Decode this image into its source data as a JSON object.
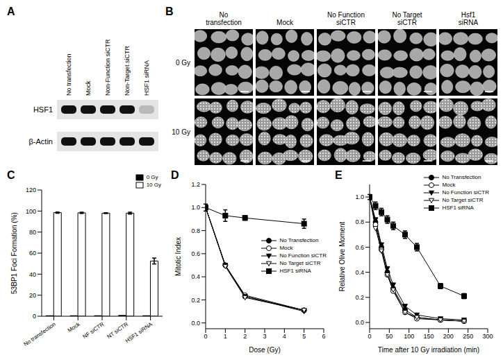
{
  "panels": {
    "A": {
      "panel": "A",
      "type": "blot",
      "lanes": [
        "No transfection",
        "Mock",
        "Non-Function siCTR",
        "Non-Target siCTR",
        "HSF1 siRNA"
      ],
      "rows": [
        {
          "name": "HSF1",
          "intensity": [
            1,
            1,
            1,
            1,
            0.2
          ]
        },
        {
          "name": "β-Actin",
          "intensity": [
            1,
            1,
            1,
            1,
            1
          ]
        }
      ]
    },
    "B": {
      "panel": "B",
      "type": "micrographs",
      "columns": [
        "No transfection",
        "Mock",
        "No Function siCTR",
        "No Target siCTR",
        "Hsf1 siRNA"
      ],
      "rows": [
        "0 Gy",
        "10 Gy"
      ]
    }
  },
  "chart_data": [
    {
      "panel": "C",
      "type": "bar",
      "categories": [
        "No transfection",
        "Mock",
        "NF siCTR",
        "NT siCTR",
        "HSF1 siRNA"
      ],
      "series": [
        {
          "name": "0 Gy",
          "color": "#000000",
          "values": [
            0.5,
            0.5,
            0.5,
            0.8,
            0.5
          ]
        },
        {
          "name": "10 Gy",
          "color": "#ffffff",
          "values": [
            98.5,
            98.3,
            98,
            98,
            52.5
          ],
          "errors": [
            0.6,
            0.6,
            0.4,
            0.9,
            2.8
          ]
        }
      ],
      "y_label": "53BP1 Foci Formation (%)",
      "ylim": [
        0,
        120
      ],
      "yticks": [
        0,
        20,
        40,
        60,
        80,
        100,
        120
      ],
      "legend": "upper right",
      "grid": false
    },
    {
      "panel": "D",
      "type": "line",
      "x": [
        0,
        1,
        2,
        5
      ],
      "series": [
        {
          "name": "No Transfection",
          "color": "#000000",
          "marker": "circle",
          "values": [
            1,
            0.5,
            0.23,
            0.11
          ]
        },
        {
          "name": "Mock",
          "color": "#000000",
          "marker": "circle_open",
          "values": [
            1,
            0.5,
            0.24,
            0.11
          ]
        },
        {
          "name": "No Function siCTR",
          "color": "#000000",
          "marker": "triangle_down",
          "values": [
            1,
            0.5,
            0.23,
            0.1
          ]
        },
        {
          "name": "No Target siCTR",
          "color": "#000000",
          "marker": "triangle_down_open",
          "values": [
            1,
            0.49,
            0.22,
            0.11
          ]
        },
        {
          "name": "HSF1 siRNA",
          "color": "#000000",
          "marker": "square",
          "values": [
            1,
            0.93,
            0.91,
            0.86
          ],
          "errors": [
            0.03,
            0.05,
            0.02,
            0.04
          ]
        }
      ],
      "x_label": "Dose (Gy)",
      "y_label": "Mitotic Index",
      "xlim": [
        0,
        6
      ],
      "xticks": [
        0,
        1,
        2,
        3,
        4,
        5,
        6
      ],
      "ylim": [
        -0.05,
        1.2
      ],
      "yticks": [
        {
          "value": 0,
          "label": "0.0"
        },
        0.2,
        0.4,
        0.6,
        0.8,
        {
          "value": 1,
          "label": "1.0"
        },
        1.2
      ],
      "legend": "center right",
      "grid": false
    },
    {
      "panel": "E",
      "type": "line",
      "x": [
        0,
        15,
        30,
        45,
        60,
        90,
        120,
        180,
        240
      ],
      "series": [
        {
          "name": "No Transfection",
          "color": "#000000",
          "marker": "circle",
          "values": [
            1,
            0.8,
            0.6,
            0.4,
            0.27,
            0.1,
            0.04,
            0.02,
            0.01
          ]
        },
        {
          "name": "Mock",
          "color": "#000000",
          "marker": "circle_open",
          "values": [
            1,
            0.78,
            0.58,
            0.38,
            0.25,
            0.08,
            0.03,
            0.02,
            0.01
          ]
        },
        {
          "name": "No Function siCTR",
          "color": "#000000",
          "marker": "triangle_down",
          "values": [
            1,
            0.82,
            0.62,
            0.43,
            0.3,
            0.13,
            0.06,
            0.03,
            0.02
          ]
        },
        {
          "name": "No Target siCTR",
          "color": "#000000",
          "marker": "triangle_down_open",
          "values": [
            1,
            0.75,
            0.57,
            0.38,
            0.26,
            0.08,
            0.04,
            0.02,
            0.01
          ]
        },
        {
          "name": "HSF1 siRNA",
          "color": "#000000",
          "marker": "square",
          "values": [
            1,
            0.93,
            0.88,
            0.82,
            0.77,
            0.7,
            0.6,
            0.29,
            0.21
          ],
          "errors": [
            0.02,
            0.03,
            0.03,
            0.03,
            0.03,
            0.03,
            0.03,
            0.02,
            0.02
          ]
        }
      ],
      "x_label": "Time after 10 Gy irradiation (min)",
      "y_label": "Relative Olive Moment",
      "xlim": [
        0,
        300
      ],
      "xticks": [
        0,
        50,
        100,
        150,
        200,
        250,
        300
      ],
      "ylim": [
        -0.05,
        1.1
      ],
      "yticks": [
        {
          "value": 0,
          "label": "0.0"
        },
        0.2,
        0.4,
        0.6,
        0.8,
        {
          "value": 1,
          "label": "1.0"
        }
      ],
      "legend": "upper right",
      "grid": false
    }
  ]
}
